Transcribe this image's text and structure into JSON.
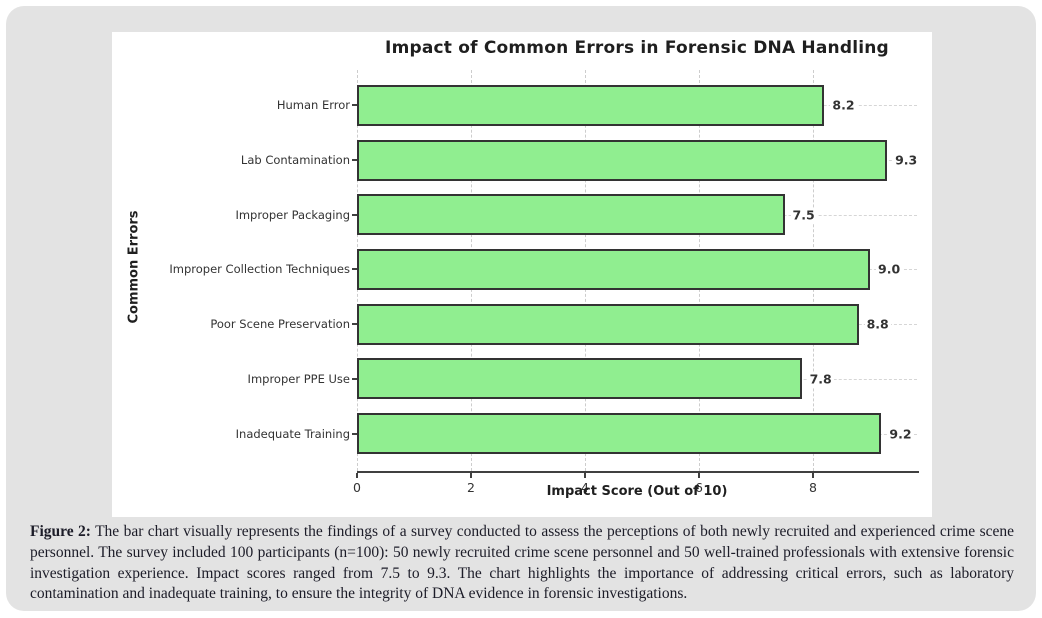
{
  "page": {
    "background": "#ffffff",
    "panel_background": "#e3e3e3",
    "figure_background": "#ffffff"
  },
  "chart_data": {
    "type": "bar",
    "orientation": "horizontal",
    "title": "Impact of Common Errors in Forensic DNA Handling",
    "xlabel": "Impact Score (Out of 10)",
    "ylabel": "Common Errors",
    "categories": [
      "Human Error",
      "Lab Contamination",
      "Improper Packaging",
      "Improper Collection Techniques",
      "Poor Scene Preservation",
      "Improper PPE Use",
      "Inadequate Training"
    ],
    "values": [
      8.2,
      9.3,
      7.5,
      9.0,
      8.8,
      7.8,
      9.2
    ],
    "value_labels": [
      "8.2",
      "9.3",
      "7.5",
      "9.0",
      "8.8",
      "7.8",
      "9.2"
    ],
    "xlim": [
      0,
      9.82
    ],
    "xticks": [
      0,
      2,
      4,
      6,
      8
    ],
    "grid": true,
    "legend": "none",
    "bar_color": "#90ee90",
    "bar_edge_color": "#333333"
  },
  "caption": {
    "label": "Figure 2:",
    "text": " The bar chart visually represents the findings of a survey conducted to assess the perceptions of both newly recruited and experienced crime scene personnel. The survey included 100 participants (n=100): 50 newly recruited crime scene personnel and 50 well-trained professionals with extensive forensic investigation experience. Impact scores ranged from 7.5 to 9.3. The chart highlights the importance of addressing critical errors, such as laboratory contamination and inadequate training, to ensure the integrity of DNA evidence in forensic investigations."
  }
}
